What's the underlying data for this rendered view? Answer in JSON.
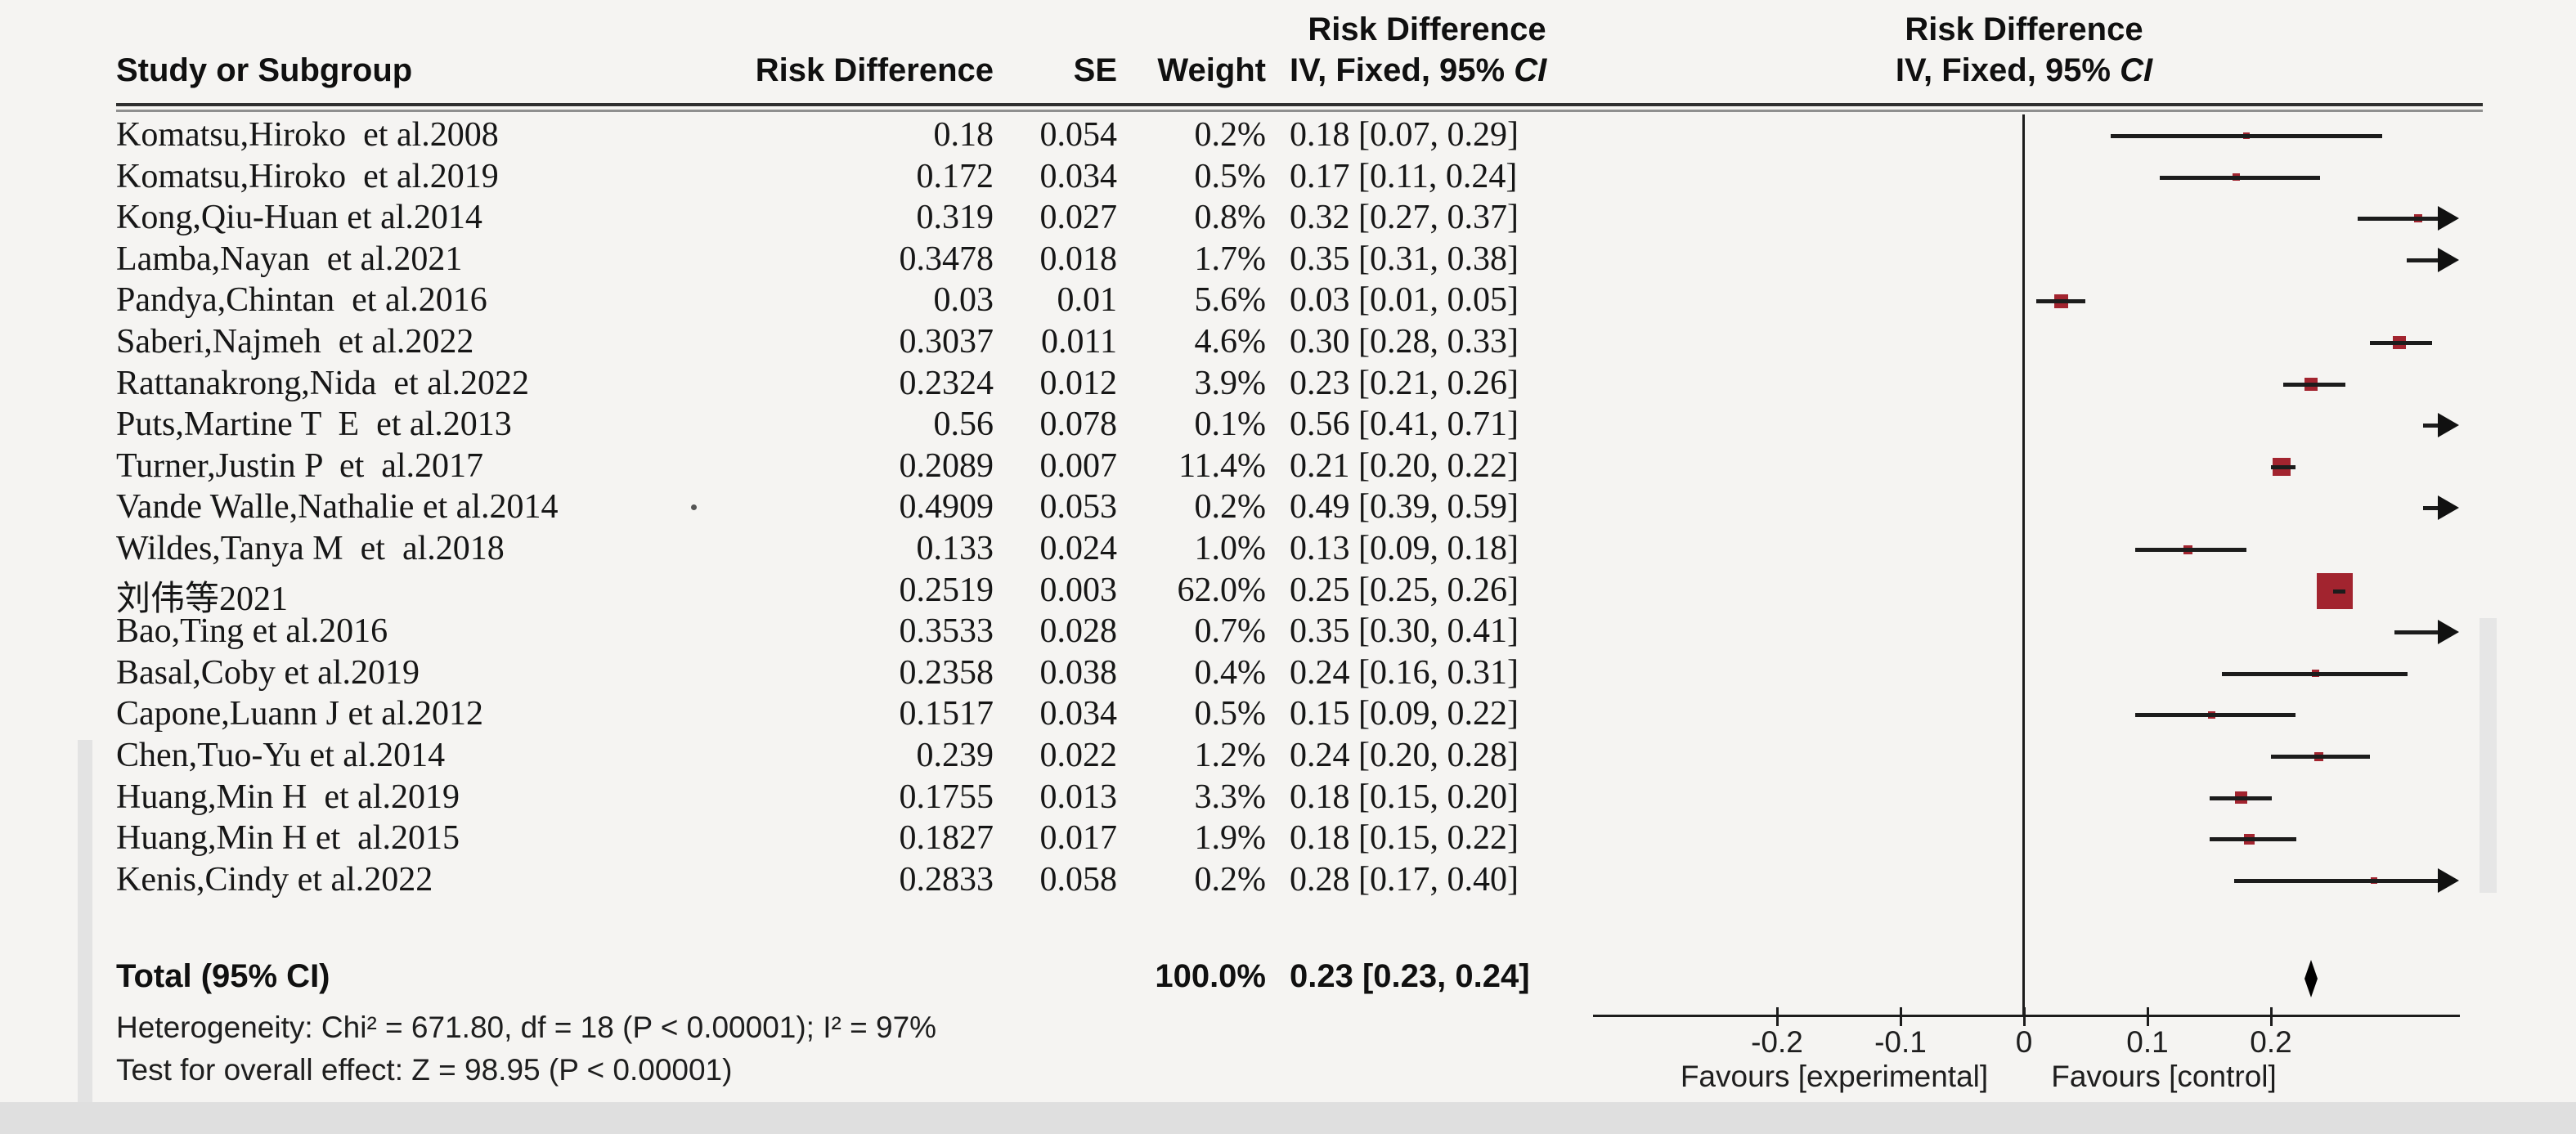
{
  "header": {
    "col_study": "Study or Subgroup",
    "col_rd": "Risk Difference",
    "col_se": "SE",
    "col_weight": "Weight",
    "ci_col_title": "Risk Difference",
    "ci_col_sub_prefix": "IV, Fixed, 95% ",
    "ci_col_sub_italic": "CI"
  },
  "chart_data": {
    "type": "forest",
    "effect_measure": "Risk Difference",
    "model": "IV, Fixed",
    "studies": [
      {
        "name": "Komatsu,Hiroko  et al.2008",
        "rd": "0.18",
        "se": "0.054",
        "weight": "0.2%",
        "ci_text": "0.18 [0.07, 0.29]",
        "est": 0.18,
        "lo": 0.07,
        "hi": 0.29,
        "w": 0.2
      },
      {
        "name": "Komatsu,Hiroko  et al.2019",
        "rd": "0.172",
        "se": "0.034",
        "weight": "0.5%",
        "ci_text": "0.17 [0.11, 0.24]",
        "est": 0.172,
        "lo": 0.11,
        "hi": 0.24,
        "w": 0.5
      },
      {
        "name": "Kong,Qiu-Huan et al.2014",
        "rd": "0.319",
        "se": "0.027",
        "weight": "0.8%",
        "ci_text": "0.32 [0.27, 0.37]",
        "est": 0.319,
        "lo": 0.27,
        "hi": 0.37,
        "w": 0.8
      },
      {
        "name": "Lamba,Nayan  et al.2021",
        "rd": "0.3478",
        "se": "0.018",
        "weight": "1.7%",
        "ci_text": "0.35 [0.31, 0.38]",
        "est": 0.3478,
        "lo": 0.31,
        "hi": 0.38,
        "w": 1.7
      },
      {
        "name": "Pandya,Chintan  et al.2016",
        "rd": "0.03",
        "se": "0.01",
        "weight": "5.6%",
        "ci_text": "0.03 [0.01, 0.05]",
        "est": 0.03,
        "lo": 0.01,
        "hi": 0.05,
        "w": 5.6
      },
      {
        "name": "Saberi,Najmeh  et al.2022",
        "rd": "0.3037",
        "se": "0.011",
        "weight": "4.6%",
        "ci_text": "0.30 [0.28, 0.33]",
        "est": 0.3037,
        "lo": 0.28,
        "hi": 0.33,
        "w": 4.6
      },
      {
        "name": "Rattanakrong,Nida  et al.2022",
        "rd": "0.2324",
        "se": "0.012",
        "weight": "3.9%",
        "ci_text": "0.23 [0.21, 0.26]",
        "est": 0.2324,
        "lo": 0.21,
        "hi": 0.26,
        "w": 3.9
      },
      {
        "name": "Puts,Martine T  E  et al.2013",
        "rd": "0.56",
        "se": "0.078",
        "weight": "0.1%",
        "ci_text": "0.56 [0.41, 0.71]",
        "est": 0.56,
        "lo": 0.41,
        "hi": 0.71,
        "w": 0.1
      },
      {
        "name": "Turner,Justin P  et  al.2017",
        "rd": "0.2089",
        "se": "0.007",
        "weight": "11.4%",
        "ci_text": "0.21 [0.20, 0.22]",
        "est": 0.2089,
        "lo": 0.2,
        "hi": 0.22,
        "w": 11.4
      },
      {
        "name": "Vande Walle,Nathalie et al.2014",
        "rd": "0.4909",
        "se": "0.053",
        "weight": "0.2%",
        "ci_text": "0.49 [0.39, 0.59]",
        "est": 0.4909,
        "lo": 0.39,
        "hi": 0.59,
        "w": 0.2
      },
      {
        "name": "Wildes,Tanya M  et  al.2018",
        "rd": "0.133",
        "se": "0.024",
        "weight": "1.0%",
        "ci_text": "0.13 [0.09, 0.18]",
        "est": 0.133,
        "lo": 0.09,
        "hi": 0.18,
        "w": 1.0
      },
      {
        "name": "刘伟等2021",
        "rd": "0.2519",
        "se": "0.003",
        "weight": "62.0%",
        "ci_text": "0.25 [0.25, 0.26]",
        "est": 0.2519,
        "lo": 0.25,
        "hi": 0.26,
        "w": 62.0
      },
      {
        "name": "Bao,Ting et al.2016",
        "rd": "0.3533",
        "se": "0.028",
        "weight": "0.7%",
        "ci_text": "0.35 [0.30, 0.41]",
        "est": 0.3533,
        "lo": 0.3,
        "hi": 0.41,
        "w": 0.7
      },
      {
        "name": "Basal,Coby et al.2019",
        "rd": "0.2358",
        "se": "0.038",
        "weight": "0.4%",
        "ci_text": "0.24 [0.16, 0.31]",
        "est": 0.2358,
        "lo": 0.16,
        "hi": 0.31,
        "w": 0.4
      },
      {
        "name": "Capone,Luann J et al.2012",
        "rd": "0.1517",
        "se": "0.034",
        "weight": "0.5%",
        "ci_text": "0.15 [0.09, 0.22]",
        "est": 0.1517,
        "lo": 0.09,
        "hi": 0.22,
        "w": 0.5
      },
      {
        "name": "Chen,Tuo-Yu et al.2014",
        "rd": "0.239",
        "se": "0.022",
        "weight": "1.2%",
        "ci_text": "0.24 [0.20, 0.28]",
        "est": 0.239,
        "lo": 0.2,
        "hi": 0.28,
        "w": 1.2
      },
      {
        "name": "Huang,Min H  et al.2019",
        "rd": "0.1755",
        "se": "0.013",
        "weight": "3.3%",
        "ci_text": "0.18 [0.15, 0.20]",
        "est": 0.1755,
        "lo": 0.15,
        "hi": 0.2,
        "w": 3.3
      },
      {
        "name": "Huang,Min H et  al.2015",
        "rd": "0.1827",
        "se": "0.017",
        "weight": "1.9%",
        "ci_text": "0.18 [0.15, 0.22]",
        "est": 0.1827,
        "lo": 0.15,
        "hi": 0.22,
        "w": 1.9
      },
      {
        "name": "Kenis,Cindy et al.2022",
        "rd": "0.2833",
        "se": "0.058",
        "weight": "0.2%",
        "ci_text": "0.28 [0.17, 0.40]",
        "est": 0.2833,
        "lo": 0.17,
        "hi": 0.4,
        "w": 0.2
      }
    ],
    "total": {
      "label": "Total (95% CI)",
      "weight": "100.0%",
      "ci_text": "0.23 [0.23, 0.24]",
      "est": 0.2325,
      "lo": 0.228,
      "hi": 0.238
    },
    "heterogeneity": "Heterogeneity: Chi² = 671.80, df = 18 (P < 0.00001); I² = 97%",
    "overall_effect": "Test for overall effect: Z = 98.95 (P < 0.00001)",
    "axis": {
      "min": -0.35,
      "max": 0.35,
      "ticks": [
        -0.2,
        -0.1,
        0,
        0.1,
        0.2
      ],
      "tick_labels": [
        "-0.2",
        "-0.1",
        "0",
        "0.1",
        "0.2"
      ],
      "favours_left": "Favours [experimental]",
      "favours_right": "Favours [control]"
    }
  },
  "colors": {
    "marker": "#a2242f",
    "ci_line": "#1c1c1c",
    "diamond": "#000000",
    "rule_dark": "#2f2f2f",
    "rule_light": "#8f8f8f",
    "scrollbar": "#e3e3e3",
    "background": "#f5f4f2"
  }
}
